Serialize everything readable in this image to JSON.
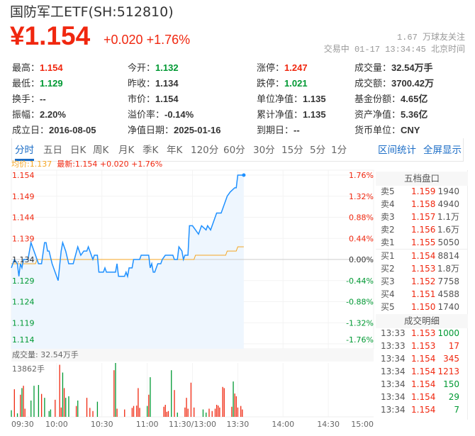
{
  "header": {
    "title": "国防军工ETF(SH:512810)",
    "price": "¥1.154",
    "change": "+0.020",
    "change_pct": "+1.76%",
    "followers": "1.67 万球友关注",
    "status": "交易中 01-17 13:34:45 北京时间"
  },
  "stats": [
    [
      {
        "k": "最高：",
        "v": "1.154",
        "c": "red"
      },
      {
        "k": "今开：",
        "v": "1.132",
        "c": "green"
      },
      {
        "k": "涨停：",
        "v": "1.247",
        "c": "red"
      },
      {
        "k": "成交量：",
        "v": "32.54万手",
        "c": ""
      }
    ],
    [
      {
        "k": "最低：",
        "v": "1.129",
        "c": "green"
      },
      {
        "k": "昨收：",
        "v": "1.134",
        "c": ""
      },
      {
        "k": "跌停：",
        "v": "1.021",
        "c": "green"
      },
      {
        "k": "成交额：",
        "v": "3700.42万",
        "c": ""
      }
    ],
    [
      {
        "k": "换手：",
        "v": "--",
        "c": ""
      },
      {
        "k": "市价：",
        "v": "1.154",
        "c": ""
      },
      {
        "k": "单位净值：",
        "v": "1.135",
        "c": ""
      },
      {
        "k": "基金份额：",
        "v": "4.65亿",
        "c": ""
      }
    ],
    [
      {
        "k": "振幅：",
        "v": "2.20%",
        "c": ""
      },
      {
        "k": "溢价率：",
        "v": "-0.14%",
        "c": ""
      },
      {
        "k": "累计净值：",
        "v": "1.135",
        "c": ""
      },
      {
        "k": "资产净值：",
        "v": "5.36亿",
        "c": ""
      }
    ],
    [
      {
        "k": "成立日：",
        "v": "2016-08-05",
        "c": ""
      },
      {
        "k": "净值日期：",
        "v": "2025-01-16",
        "c": ""
      },
      {
        "k": "到期日：",
        "v": "--",
        "c": ""
      },
      {
        "k": "货币单位：",
        "v": "CNY",
        "c": ""
      }
    ]
  ],
  "tabs": [
    "分时",
    "五日",
    "日K",
    "周K",
    "月K",
    "季K",
    "年K",
    "120分",
    "60分",
    "30分",
    "15分",
    "5分",
    "1分"
  ],
  "active_tab": "分时",
  "links": [
    "区间统计",
    "全屏显示"
  ],
  "legend": {
    "avg": "均价:1.137",
    "latest": "最新:1.154 +0.020 +1.76%"
  },
  "colors": {
    "up": "#f0270f",
    "down": "#009933",
    "line": "#1e90ff",
    "avg": "#f5a623",
    "fill": "#eef6fe"
  },
  "orderbook": {
    "title": "五档盘口",
    "asks": [
      [
        "卖5",
        "1.159",
        "1940"
      ],
      [
        "卖4",
        "1.158",
        "4940"
      ],
      [
        "卖3",
        "1.157",
        "1.1万"
      ],
      [
        "卖2",
        "1.156",
        "1.6万"
      ],
      [
        "卖1",
        "1.155",
        "5050"
      ]
    ],
    "bids": [
      [
        "买1",
        "1.154",
        "8814"
      ],
      [
        "买2",
        "1.153",
        "1.8万"
      ],
      [
        "买3",
        "1.152",
        "7758"
      ],
      [
        "买4",
        "1.151",
        "4588"
      ],
      [
        "买5",
        "1.150",
        "1740"
      ]
    ],
    "trades_title": "成交明细",
    "trades": [
      [
        "13:33",
        "1.153",
        "1000",
        "down"
      ],
      [
        "13:33",
        "1.153",
        "17",
        "up"
      ],
      [
        "13:34",
        "1.154",
        "345",
        "up"
      ],
      [
        "13:34",
        "1.154",
        "1213",
        "up"
      ],
      [
        "13:34",
        "1.154",
        "150",
        "down"
      ],
      [
        "13:34",
        "1.154",
        "29",
        "down"
      ],
      [
        "13:34",
        "1.154",
        "7",
        "down"
      ]
    ]
  },
  "volume_header": "成交量: 32.54万手",
  "chart_data": {
    "type": "line",
    "prev_close": 1.134,
    "ylim": [
      1.114,
      1.154
    ],
    "y_ticks": [
      "1.154",
      "1.149",
      "1.144",
      "1.139",
      "1.134",
      "1.129",
      "1.124",
      "1.119",
      "1.114"
    ],
    "pct_ticks": [
      "1.76%",
      "1.32%",
      "0.88%",
      "0.44%",
      "0.00%",
      "-0.44%",
      "-0.88%",
      "-1.32%",
      "-1.76%"
    ],
    "x_ticks": [
      "09:30",
      "10:00",
      "10:30",
      "11:00",
      "11:30/13:00",
      "13:30",
      "14:00",
      "14:30",
      "15:00"
    ],
    "price": [
      [
        "09:30",
        1.132
      ],
      [
        "09:32",
        1.134
      ],
      [
        "09:34",
        1.133
      ],
      [
        "09:35",
        1.13
      ],
      [
        "09:36",
        1.133
      ],
      [
        "09:37",
        1.132
      ],
      [
        "09:38",
        1.134
      ],
      [
        "09:41",
        1.134
      ],
      [
        "09:43",
        1.138
      ],
      [
        "09:46",
        1.135
      ],
      [
        "09:48",
        1.133
      ],
      [
        "09:50",
        1.133
      ],
      [
        "09:52",
        1.138
      ],
      [
        "09:53",
        1.138
      ],
      [
        "09:54",
        1.136
      ],
      [
        "09:55",
        1.136
      ],
      [
        "09:57",
        1.133
      ],
      [
        "09:59",
        1.131
      ],
      [
        "10:01",
        1.129
      ],
      [
        "10:03",
        1.136
      ],
      [
        "10:04",
        1.138
      ],
      [
        "10:06",
        1.136
      ],
      [
        "10:08",
        1.133
      ],
      [
        "10:11",
        1.133
      ],
      [
        "10:14",
        1.137
      ],
      [
        "10:16",
        1.135
      ],
      [
        "10:18",
        1.136
      ],
      [
        "10:20",
        1.136
      ],
      [
        "10:21",
        1.137
      ],
      [
        "10:23",
        1.135
      ],
      [
        "10:24",
        1.134
      ],
      [
        "10:25",
        1.135
      ],
      [
        "10:27",
        1.135
      ],
      [
        "10:28",
        1.131
      ],
      [
        "10:31",
        1.131
      ],
      [
        "10:32",
        1.132
      ],
      [
        "10:33",
        1.131
      ],
      [
        "10:39",
        1.131
      ],
      [
        "10:40",
        1.133
      ],
      [
        "10:41",
        1.13
      ],
      [
        "10:45",
        1.13
      ],
      [
        "10:46",
        1.131
      ],
      [
        "10:47",
        1.13
      ],
      [
        "10:48",
        1.132
      ],
      [
        "10:50",
        1.132
      ],
      [
        "10:51",
        1.134
      ],
      [
        "10:55",
        1.134
      ],
      [
        "10:56",
        1.135
      ],
      [
        "11:01",
        1.135
      ],
      [
        "11:02",
        1.132
      ],
      [
        "11:03",
        1.133
      ],
      [
        "11:04",
        1.131
      ],
      [
        "11:05",
        1.131
      ],
      [
        "11:07",
        1.133
      ],
      [
        "11:09",
        1.133
      ],
      [
        "11:10",
        1.134
      ],
      [
        "11:12",
        1.135
      ],
      [
        "11:17",
        1.135
      ],
      [
        "11:18",
        1.134
      ],
      [
        "11:20",
        1.134
      ],
      [
        "11:21",
        1.137
      ],
      [
        "11:23",
        1.136
      ],
      [
        "11:24",
        1.134
      ],
      [
        "11:25",
        1.135
      ],
      [
        "11:27",
        1.135
      ],
      [
        "11:28",
        1.142
      ],
      [
        "11:30",
        1.142
      ],
      [
        "13:02",
        1.141
      ],
      [
        "13:04",
        1.14
      ],
      [
        "13:06",
        1.142
      ],
      [
        "13:09",
        1.141
      ],
      [
        "13:10",
        1.142
      ],
      [
        "13:12",
        1.141
      ],
      [
        "13:14",
        1.143
      ],
      [
        "13:16",
        1.145
      ],
      [
        "13:19",
        1.145
      ],
      [
        "13:21",
        1.147
      ],
      [
        "13:23",
        1.149
      ],
      [
        "13:25",
        1.15
      ],
      [
        "13:28",
        1.151
      ],
      [
        "13:29",
        1.151
      ],
      [
        "13:30",
        1.154
      ],
      [
        "13:32",
        1.154
      ],
      [
        "13:34",
        1.154
      ]
    ],
    "avg_price": [
      [
        "09:30",
        1.133
      ],
      [
        "09:46",
        1.133
      ],
      [
        "09:47",
        1.134
      ],
      [
        "13:01",
        1.134
      ],
      [
        "13:02",
        1.135
      ],
      [
        "13:22",
        1.135
      ],
      [
        "13:23",
        1.136
      ],
      [
        "13:29",
        1.136
      ],
      [
        "13:30",
        1.137
      ],
      [
        "13:34",
        1.137
      ]
    ],
    "volume_max_label": "13862手",
    "volume_max": 13862,
    "volume": [
      [
        "09:30",
        1700,
        "down"
      ],
      [
        "09:32",
        7100,
        "up"
      ],
      [
        "09:34",
        900,
        "down"
      ],
      [
        "09:36",
        5700,
        "up"
      ],
      [
        "09:37",
        7400,
        "down"
      ],
      [
        "09:38",
        8000,
        "up"
      ],
      [
        "09:39",
        2100,
        "up"
      ],
      [
        "09:43",
        4200,
        "down"
      ],
      [
        "09:45",
        8000,
        "down"
      ],
      [
        "09:48",
        8200,
        "down"
      ],
      [
        "09:50",
        5900,
        "up"
      ],
      [
        "09:52",
        4900,
        "down"
      ],
      [
        "09:55",
        1500,
        "down"
      ],
      [
        "09:56",
        1900,
        "down"
      ],
      [
        "09:59",
        4400,
        "up"
      ],
      [
        "10:02",
        13400,
        "up"
      ],
      [
        "10:03",
        2400,
        "up"
      ],
      [
        "10:04",
        11400,
        "down"
      ],
      [
        "10:05",
        7400,
        "up"
      ],
      [
        "10:06",
        4900,
        "down"
      ],
      [
        "10:08",
        5300,
        "down"
      ],
      [
        "10:13",
        2800,
        "up"
      ],
      [
        "10:14",
        4200,
        "down"
      ],
      [
        "10:20",
        4900,
        "up"
      ],
      [
        "10:22",
        2300,
        "up"
      ],
      [
        "10:24",
        1500,
        "up"
      ],
      [
        "10:27",
        3900,
        "down"
      ],
      [
        "10:38",
        12000,
        "up"
      ],
      [
        "10:39",
        13862,
        "down"
      ],
      [
        "10:40",
        2100,
        "up"
      ],
      [
        "10:45",
        1900,
        "up"
      ],
      [
        "10:50",
        2300,
        "up"
      ],
      [
        "10:51",
        2800,
        "up"
      ],
      [
        "10:53",
        2900,
        "up"
      ],
      [
        "10:54",
        7400,
        "up"
      ],
      [
        "10:55",
        2300,
        "up"
      ],
      [
        "11:00",
        2800,
        "down"
      ],
      [
        "11:01",
        5700,
        "up"
      ],
      [
        "11:02",
        10200,
        "down"
      ],
      [
        "11:11",
        2600,
        "up"
      ],
      [
        "11:12",
        3100,
        "up"
      ],
      [
        "11:13",
        1300,
        "up"
      ],
      [
        "11:14",
        1500,
        "up"
      ],
      [
        "11:16",
        12000,
        "down"
      ],
      [
        "11:18",
        6900,
        "up"
      ],
      [
        "11:20",
        1100,
        "down"
      ],
      [
        "11:25",
        2400,
        "up"
      ],
      [
        "11:26",
        4900,
        "up"
      ],
      [
        "11:27",
        2100,
        "up"
      ],
      [
        "11:29",
        8800,
        "up"
      ],
      [
        "13:01",
        2400,
        "up"
      ],
      [
        "13:07",
        1900,
        "down"
      ],
      [
        "13:09",
        1100,
        "down"
      ],
      [
        "13:11",
        2100,
        "up"
      ],
      [
        "13:13",
        1500,
        "up"
      ],
      [
        "13:15",
        2100,
        "up"
      ],
      [
        "13:16",
        3100,
        "up"
      ],
      [
        "13:17",
        2900,
        "up"
      ],
      [
        "13:18",
        2400,
        "up"
      ],
      [
        "13:20",
        7700,
        "up"
      ],
      [
        "13:21",
        7400,
        "up"
      ],
      [
        "13:26",
        2600,
        "up"
      ],
      [
        "13:27",
        9100,
        "down"
      ],
      [
        "13:28",
        6000,
        "up"
      ],
      [
        "13:29",
        5300,
        "up"
      ],
      [
        "13:30",
        2400,
        "up"
      ],
      [
        "13:32",
        2800,
        "up"
      ],
      [
        "13:33",
        1900,
        "up"
      ]
    ]
  }
}
